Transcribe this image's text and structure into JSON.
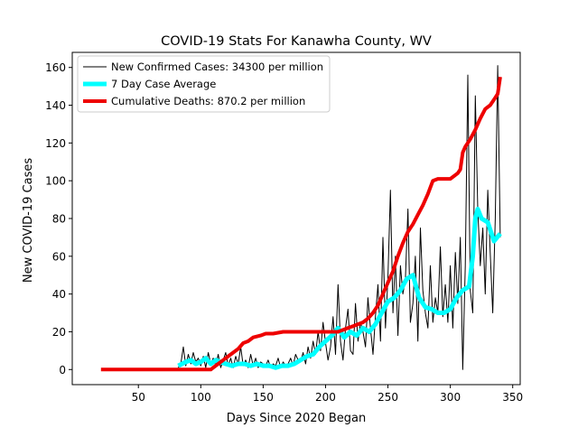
{
  "chart_data": {
    "type": "line",
    "title": "COVID-19 Stats For Kanawha County, WV",
    "xlabel": "Days Since 2020 Began",
    "ylabel": "New COVID-19 Cases",
    "xlim": [
      -3,
      356
    ],
    "ylim": [
      -8,
      168
    ],
    "xticks": [
      50,
      100,
      150,
      200,
      250,
      300,
      350
    ],
    "yticks": [
      0,
      20,
      40,
      60,
      80,
      100,
      120,
      140,
      160
    ],
    "grid": false,
    "legend_position": "top-left",
    "series": [
      {
        "name": "New Confirmed Cases: 34300 per million",
        "color": "#000000",
        "line_width": 1,
        "x": [
          82,
          84,
          86,
          88,
          90,
          92,
          94,
          96,
          98,
          100,
          102,
          104,
          106,
          108,
          110,
          112,
          114,
          116,
          118,
          120,
          122,
          124,
          126,
          128,
          130,
          132,
          134,
          136,
          138,
          140,
          142,
          144,
          146,
          148,
          150,
          152,
          154,
          156,
          158,
          160,
          162,
          164,
          166,
          168,
          170,
          172,
          174,
          176,
          178,
          180,
          182,
          184,
          186,
          188,
          190,
          192,
          194,
          196,
          198,
          200,
          202,
          204,
          206,
          208,
          210,
          212,
          214,
          216,
          218,
          220,
          222,
          224,
          226,
          228,
          230,
          232,
          234,
          236,
          238,
          240,
          242,
          244,
          246,
          248,
          250,
          252,
          254,
          256,
          258,
          260,
          262,
          264,
          266,
          268,
          270,
          272,
          274,
          276,
          278,
          280,
          282,
          284,
          286,
          288,
          290,
          292,
          294,
          296,
          298,
          300,
          302,
          304,
          306,
          308,
          310,
          312,
          314,
          316,
          318,
          320,
          322,
          324,
          326,
          328,
          330,
          332,
          334,
          336,
          338,
          340
        ],
        "y": [
          1,
          3,
          12,
          2,
          8,
          3,
          9,
          4,
          6,
          2,
          7,
          1,
          9,
          3,
          6,
          2,
          8,
          1,
          5,
          9,
          2,
          6,
          1,
          7,
          3,
          12,
          2,
          5,
          1,
          8,
          2,
          6,
          1,
          4,
          3,
          2,
          5,
          1,
          3,
          2,
          6,
          1,
          4,
          2,
          3,
          6,
          2,
          8,
          5,
          4,
          9,
          3,
          12,
          6,
          15,
          8,
          20,
          10,
          25,
          14,
          5,
          12,
          28,
          8,
          45,
          15,
          5,
          22,
          32,
          10,
          8,
          35,
          15,
          25,
          20,
          12,
          38,
          22,
          8,
          28,
          45,
          15,
          70,
          22,
          48,
          95,
          30,
          60,
          18,
          55,
          40,
          48,
          85,
          25,
          35,
          60,
          15,
          75,
          42,
          30,
          22,
          55,
          25,
          38,
          30,
          65,
          28,
          45,
          25,
          55,
          22,
          62,
          35,
          70,
          0,
          55,
          156,
          42,
          30,
          145,
          85,
          55,
          75,
          40,
          95,
          62,
          30,
          80,
          161,
          70
        ],
        "notes": ""
      },
      {
        "name": "7 Day Case Average",
        "color": "#00ffff",
        "line_width": 5,
        "x": [
          82,
          88,
          92,
          96,
          100,
          104,
          108,
          112,
          116,
          120,
          125,
          130,
          135,
          140,
          145,
          150,
          155,
          160,
          165,
          170,
          175,
          180,
          185,
          190,
          195,
          200,
          205,
          210,
          215,
          220,
          225,
          230,
          235,
          240,
          245,
          250,
          255,
          260,
          265,
          270,
          275,
          280,
          285,
          290,
          295,
          300,
          305,
          310,
          315,
          318,
          320,
          322,
          325,
          330,
          335,
          340
        ],
        "y": [
          2,
          4,
          5,
          3,
          4,
          6,
          3,
          5,
          4,
          3,
          2,
          3,
          3,
          2,
          3,
          2,
          2,
          1,
          2,
          2,
          3,
          5,
          7,
          8,
          12,
          15,
          18,
          22,
          17,
          20,
          18,
          22,
          20,
          24,
          30,
          36,
          38,
          42,
          48,
          50,
          38,
          33,
          32,
          30,
          30,
          32,
          38,
          42,
          44,
          60,
          80,
          85,
          80,
          78,
          68,
          72
        ]
      },
      {
        "name": "Cumulative Deaths: 870.2 per million",
        "color": "#ee0000",
        "line_width": 4,
        "x": [
          20,
          60,
          100,
          108,
          110,
          114,
          118,
          122,
          126,
          130,
          134,
          138,
          142,
          148,
          152,
          158,
          166,
          180,
          200,
          210,
          214,
          218,
          222,
          226,
          230,
          234,
          238,
          242,
          246,
          250,
          254,
          258,
          262,
          266,
          270,
          274,
          278,
          282,
          286,
          290,
          296,
          300,
          306,
          308,
          310,
          312,
          316,
          320,
          324,
          328,
          332,
          336,
          338,
          340
        ],
        "y": [
          0,
          0,
          0,
          0,
          1,
          3,
          5,
          7,
          9,
          11,
          14,
          15,
          17,
          18,
          19,
          19,
          20,
          20,
          20,
          20,
          21,
          22,
          23,
          24,
          25,
          27,
          30,
          34,
          40,
          46,
          52,
          60,
          67,
          73,
          77,
          82,
          87,
          93,
          100,
          101,
          101,
          101,
          104,
          106,
          115,
          118,
          122,
          127,
          133,
          138,
          140,
          144,
          146,
          155
        ]
      }
    ]
  }
}
